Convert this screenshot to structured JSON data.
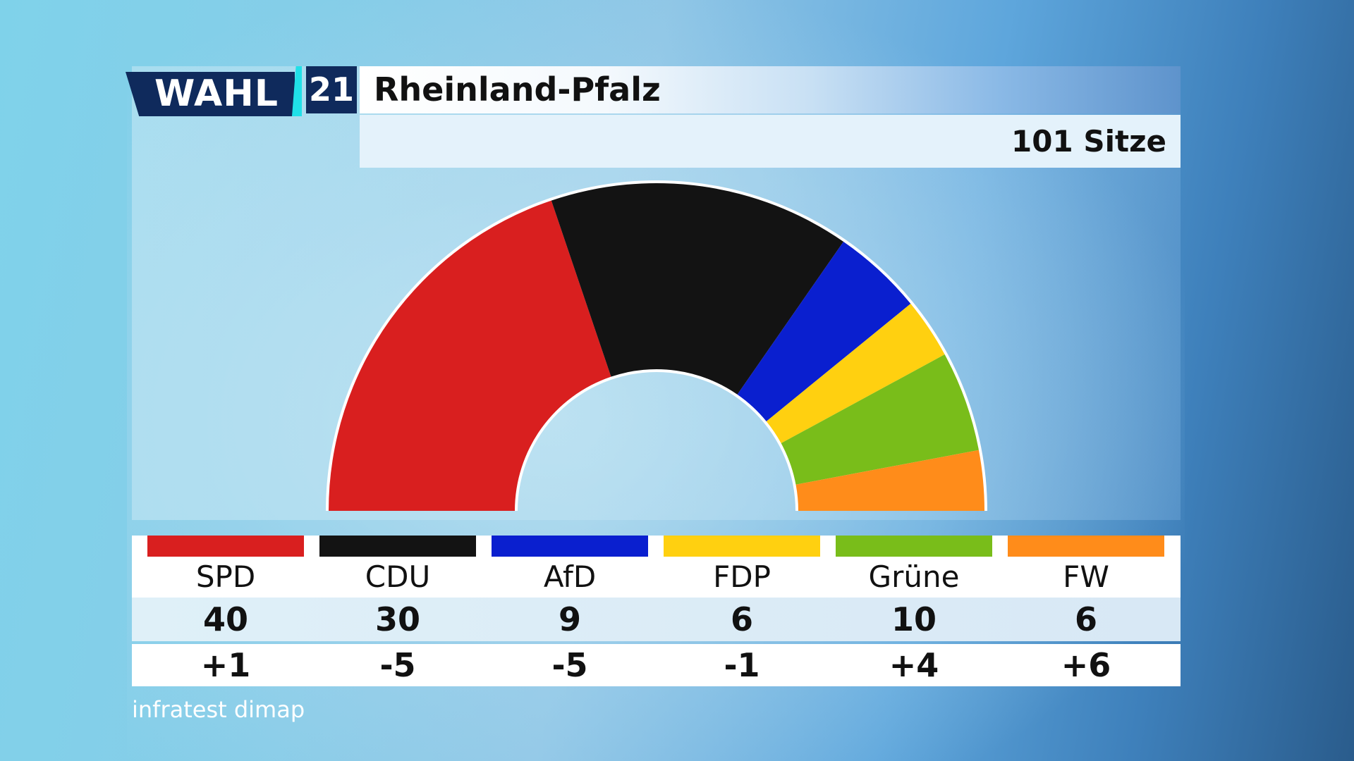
{
  "header": {
    "logo_wahl": "WAHL",
    "logo_year": "21",
    "title": "Rheinland-Pfalz",
    "seats_total": "101 Sitze"
  },
  "source": "infratest dimap",
  "chart_data": {
    "type": "parliament",
    "total": 101,
    "categories": [
      "SPD",
      "CDU",
      "AfD",
      "FDP",
      "Grüne",
      "FW"
    ],
    "values": [
      40,
      30,
      9,
      6,
      10,
      6
    ],
    "changes": [
      "+1",
      "-5",
      "-5",
      "-1",
      "+4",
      "+6"
    ],
    "colors": [
      "#d91f1f",
      "#131313",
      "#0a1fcf",
      "#ffd010",
      "#79bd1a",
      "#ff8c1a"
    ]
  },
  "table": {
    "names": [
      "SPD",
      "CDU",
      "AfD",
      "FDP",
      "Grüne",
      "FW"
    ],
    "seats": [
      "40",
      "30",
      "9",
      "6",
      "10",
      "6"
    ],
    "changes": [
      "+1",
      "-5",
      "-5",
      "-1",
      "+4",
      "+6"
    ]
  }
}
